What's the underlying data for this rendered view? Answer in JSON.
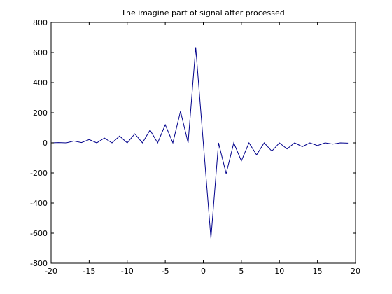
{
  "chart_data": {
    "type": "line",
    "title": "The imagine part of signal after processed",
    "xlabel": "",
    "ylabel": "",
    "xlim": [
      -20,
      20
    ],
    "ylim": [
      -800,
      800
    ],
    "x_ticks": [
      -20,
      -15,
      -10,
      -5,
      0,
      5,
      10,
      15,
      20
    ],
    "y_ticks": [
      -800,
      -600,
      -400,
      -200,
      0,
      200,
      400,
      600,
      800
    ],
    "grid": false,
    "line_color": "#00008B",
    "series": [
      {
        "x": [
          -20,
          -19,
          -18,
          -17,
          -16,
          -15,
          -14,
          -13,
          -12,
          -11,
          -10,
          -9,
          -8,
          -7,
          -6,
          -5,
          -4,
          -3,
          -2,
          -1,
          0,
          1,
          2,
          3,
          4,
          5,
          6,
          7,
          8,
          9,
          10,
          11,
          12,
          13,
          14,
          15,
          16,
          17,
          18,
          19
        ],
        "y": [
          0,
          2,
          0,
          12,
          2,
          22,
          0,
          32,
          0,
          45,
          0,
          60,
          0,
          85,
          0,
          120,
          0,
          210,
          0,
          635,
          0,
          -635,
          0,
          -205,
          0,
          -120,
          0,
          -80,
          0,
          -55,
          0,
          -40,
          0,
          -25,
          0,
          -18,
          0,
          -8,
          0,
          -2
        ]
      }
    ]
  }
}
